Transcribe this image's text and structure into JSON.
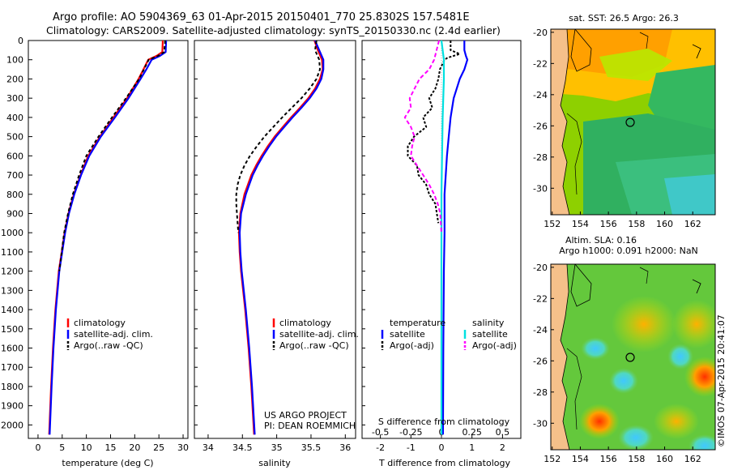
{
  "title_line1": "Argo profile: AO 5904369_63 01-Apr-2015 20150401_770 25.8302S 157.5481E",
  "title_line2": "Climatology: CARS2009. Satellite-adjusted climatology: synTS_20150330.nc (2.4d earlier)",
  "colors": {
    "clim": "#ff0000",
    "sat": "#0000ff",
    "argo": "#000000",
    "sal_sat": "#00e0e0",
    "sal_argo": "#ff00ff",
    "land": "#f5c08a"
  },
  "chart_data": [
    {
      "type": "line",
      "id": "temperature",
      "xlabel": "temperature (deg C)",
      "ylabel": "",
      "xlim": [
        -2,
        31
      ],
      "ylim": [
        2070,
        0
      ],
      "x_ticks": [
        "0",
        "5",
        "10",
        "15",
        "20",
        "25",
        "30"
      ],
      "y_ticks": [
        "0",
        "100",
        "200",
        "300",
        "400",
        "500",
        "600",
        "700",
        "800",
        "900",
        "1000",
        "1100",
        "1200",
        "1300",
        "1400",
        "1500",
        "1600",
        "1700",
        "1800",
        "1900",
        "2000"
      ],
      "legend": [
        "climatology",
        "satellite-adj. clim.",
        "Argo(..raw -QC)"
      ],
      "series": [
        {
          "name": "climatology",
          "color": "#ff0000",
          "dash": "",
          "depth": [
            0,
            60,
            80,
            100,
            150,
            200,
            300,
            400,
            500,
            600,
            700,
            800,
            900,
            1000,
            1200,
            1400,
            1600,
            1800,
            2050
          ],
          "values": [
            25.8,
            25.7,
            24.5,
            22.8,
            21.8,
            20.8,
            18.4,
            15.6,
            12.8,
            10.4,
            8.8,
            7.4,
            6.3,
            5.5,
            4.3,
            3.6,
            3.1,
            2.7,
            2.3
          ]
        },
        {
          "name": "satellite-adj. clim.",
          "color": "#0000ff",
          "dash": "",
          "depth": [
            0,
            60,
            80,
            100,
            150,
            200,
            300,
            400,
            500,
            600,
            700,
            800,
            900,
            1000,
            1200,
            1400,
            1600,
            1800,
            2050
          ],
          "values": [
            26.5,
            26.4,
            25.2,
            23.5,
            22.4,
            21.2,
            18.7,
            15.9,
            13.0,
            10.6,
            8.9,
            7.5,
            6.4,
            5.6,
            4.4,
            3.7,
            3.2,
            2.8,
            2.4
          ]
        },
        {
          "name": "Argo(..raw -QC)",
          "color": "#000000",
          "dash": "4,3",
          "depth": [
            0,
            60,
            80,
            100,
            150,
            200,
            300,
            400,
            500,
            600,
            700,
            800,
            900,
            1000,
            1100,
            1200
          ],
          "values": [
            26.3,
            26.1,
            24.8,
            22.9,
            21.9,
            20.9,
            18.2,
            15.3,
            12.5,
            10.0,
            8.5,
            7.2,
            6.2,
            5.4,
            4.9,
            4.4
          ]
        }
      ]
    },
    {
      "type": "line",
      "id": "salinity",
      "xlabel": "salinity",
      "ylabel": "",
      "xlim": [
        33.8,
        36.15
      ],
      "ylim": [
        2070,
        0
      ],
      "x_ticks": [
        "34",
        "34.5",
        "35",
        "35.5",
        "36"
      ],
      "legend": [
        "climatology",
        "satellite-adj. clim.",
        "Argo(..raw -QC)"
      ],
      "series": [
        {
          "name": "climatology",
          "color": "#ff0000",
          "dash": "",
          "depth": [
            0,
            50,
            100,
            150,
            200,
            250,
            300,
            350,
            400,
            450,
            500,
            550,
            600,
            650,
            700,
            750,
            800,
            900,
            1000,
            1100,
            1200,
            1400,
            1600,
            1800,
            2050
          ],
          "values": [
            35.55,
            35.6,
            35.66,
            35.67,
            35.63,
            35.56,
            35.46,
            35.34,
            35.21,
            35.09,
            34.97,
            34.87,
            34.78,
            34.7,
            34.63,
            34.58,
            34.53,
            34.47,
            34.45,
            34.46,
            34.48,
            34.54,
            34.59,
            34.63,
            34.67
          ]
        },
        {
          "name": "satellite-adj. clim.",
          "color": "#0000ff",
          "dash": "",
          "depth": [
            0,
            50,
            100,
            150,
            200,
            250,
            300,
            350,
            400,
            450,
            500,
            550,
            600,
            650,
            700,
            750,
            800,
            900,
            1000,
            1100,
            1200,
            1400,
            1600,
            1800,
            2050
          ],
          "values": [
            35.56,
            35.62,
            35.68,
            35.68,
            35.65,
            35.58,
            35.48,
            35.36,
            35.23,
            35.11,
            34.99,
            34.89,
            34.8,
            34.72,
            34.65,
            34.6,
            34.55,
            34.48,
            34.46,
            34.47,
            34.49,
            34.55,
            34.6,
            34.64,
            34.68
          ]
        },
        {
          "name": "Argo(..raw -QC)",
          "color": "#000000",
          "dash": "4,3",
          "depth": [
            0,
            50,
            100,
            150,
            200,
            250,
            300,
            350,
            400,
            450,
            500,
            550,
            600,
            650,
            700,
            750,
            800,
            850,
            900,
            1000
          ],
          "values": [
            35.58,
            35.56,
            35.62,
            35.63,
            35.58,
            35.48,
            35.36,
            35.22,
            35.08,
            34.95,
            34.82,
            34.71,
            34.61,
            34.53,
            34.47,
            34.43,
            34.41,
            34.41,
            34.42,
            34.44
          ]
        }
      ]
    },
    {
      "type": "line",
      "id": "difference",
      "xlabel": "T difference from climatology",
      "xlabel_top": "S difference from climatology",
      "ylabel": "",
      "xlim": [
        -2.6,
        2.6
      ],
      "ylim": [
        2070,
        0
      ],
      "x_ticks": [
        "-2",
        "-1",
        "0",
        "1",
        "2"
      ],
      "s_ticks": [
        "-0.5",
        "-0.25",
        "0",
        "0.25",
        "0.5"
      ],
      "legend_titles": [
        "temperature",
        "salinity"
      ],
      "legend": [
        "satellite",
        "Argo(-adj)",
        "satellite",
        "Argo(-adj)"
      ],
      "series": [
        {
          "name": "T satellite",
          "color": "#0000ff",
          "dash": "",
          "depth": [
            0,
            50,
            80,
            100,
            150,
            200,
            300,
            400,
            500,
            600,
            700,
            800,
            900,
            1000,
            1200,
            1600,
            2050
          ],
          "values": [
            0.75,
            0.75,
            0.8,
            0.85,
            0.75,
            0.6,
            0.4,
            0.3,
            0.24,
            0.18,
            0.14,
            0.1,
            0.1,
            0.1,
            0.08,
            0.06,
            0.05
          ]
        },
        {
          "name": "T Argo(-adj)",
          "color": "#000000",
          "dash": "3,2",
          "depth": [
            0,
            50,
            70,
            90,
            100,
            150,
            200,
            250,
            300,
            350,
            400,
            450,
            500,
            550,
            600,
            650,
            700,
            750,
            800,
            850,
            900,
            950
          ],
          "values": [
            0.3,
            0.3,
            0.6,
            0.2,
            0.1,
            -0.05,
            -0.1,
            -0.2,
            -0.4,
            -0.3,
            -0.6,
            -0.5,
            -0.9,
            -1.1,
            -1.1,
            -0.8,
            -0.75,
            -0.5,
            -0.4,
            -0.2,
            -0.15,
            -0.1
          ]
        },
        {
          "name": "S satellite",
          "color": "#00e0e0",
          "dash": "",
          "depth": [
            0,
            100,
            200,
            400,
            800,
            1200,
            1600,
            2050
          ],
          "values": [
            0.0,
            0.02,
            0.02,
            0.01,
            0.0,
            0.0,
            0.0,
            0.0
          ]
        },
        {
          "name": "S Argo(-adj)",
          "color": "#ff00ff",
          "dash": "5,3",
          "depth": [
            0,
            100,
            150,
            200,
            250,
            300,
            350,
            400,
            450,
            500,
            550,
            600,
            650,
            700,
            750,
            800,
            850,
            900,
            1000
          ],
          "values": [
            -0.02,
            -0.06,
            -0.1,
            -0.18,
            -0.22,
            -0.26,
            -0.25,
            -0.3,
            -0.25,
            -0.22,
            -0.24,
            -0.25,
            -0.2,
            -0.15,
            -0.1,
            -0.06,
            -0.03,
            -0.01,
            0.0
          ]
        }
      ]
    }
  ],
  "maps": [
    {
      "id": "sst",
      "title": "sat. SST: 26.5  Argo: 26.3",
      "title2": "",
      "lon_ticks": [
        "152",
        "154",
        "156",
        "158",
        "160",
        "162"
      ],
      "lat_ticks": [
        "-20",
        "-22",
        "-24",
        "-26",
        "-28",
        "-30"
      ]
    },
    {
      "id": "sla",
      "title": "Altim. SLA: 0.16",
      "title2": "Argo h1000: 0.091 h2000: NaN",
      "lon_ticks": [
        "152",
        "154",
        "156",
        "158",
        "160",
        "162"
      ],
      "lat_ticks": [
        "-20",
        "-22",
        "-24",
        "-26",
        "-28",
        "-30"
      ]
    }
  ],
  "annot": {
    "project": "US ARGO PROJECT",
    "pi": "PI: DEAN ROEMMICH",
    "imos": "©IMOS 07-Apr-2015 20:41:07"
  }
}
